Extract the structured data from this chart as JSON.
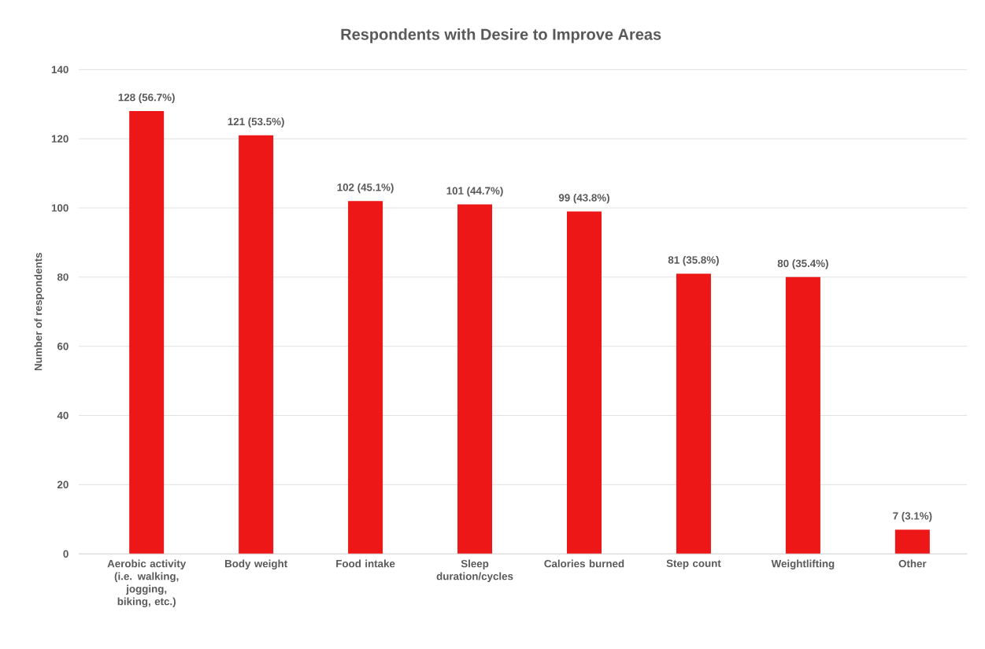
{
  "chart_data": {
    "type": "bar",
    "title": "Respondents with Desire to Improve Areas",
    "ylabel": "Number of respondents",
    "categories": [
      "Aerobic activity (i.e. walking, jogging, biking, etc.)",
      "Body weight",
      "Food intake",
      "Sleep duration/cycles",
      "Calories burned",
      "Step count",
      "Weightlifting",
      "Other"
    ],
    "values": [
      128,
      121,
      102,
      101,
      99,
      81,
      80,
      7
    ],
    "value_labels": [
      "128 (56.7%)",
      "121 (53.5%)",
      "102 (45.1%)",
      "101 (44.7%)",
      "99 (43.8%)",
      "81 (35.8%)",
      "80 (35.4%)",
      "7 (3.1%)"
    ],
    "color": "#ee1717",
    "ylim": [
      0,
      140
    ],
    "yticks": [
      0,
      20,
      40,
      60,
      80,
      100,
      120,
      140
    ],
    "grid": "y"
  }
}
